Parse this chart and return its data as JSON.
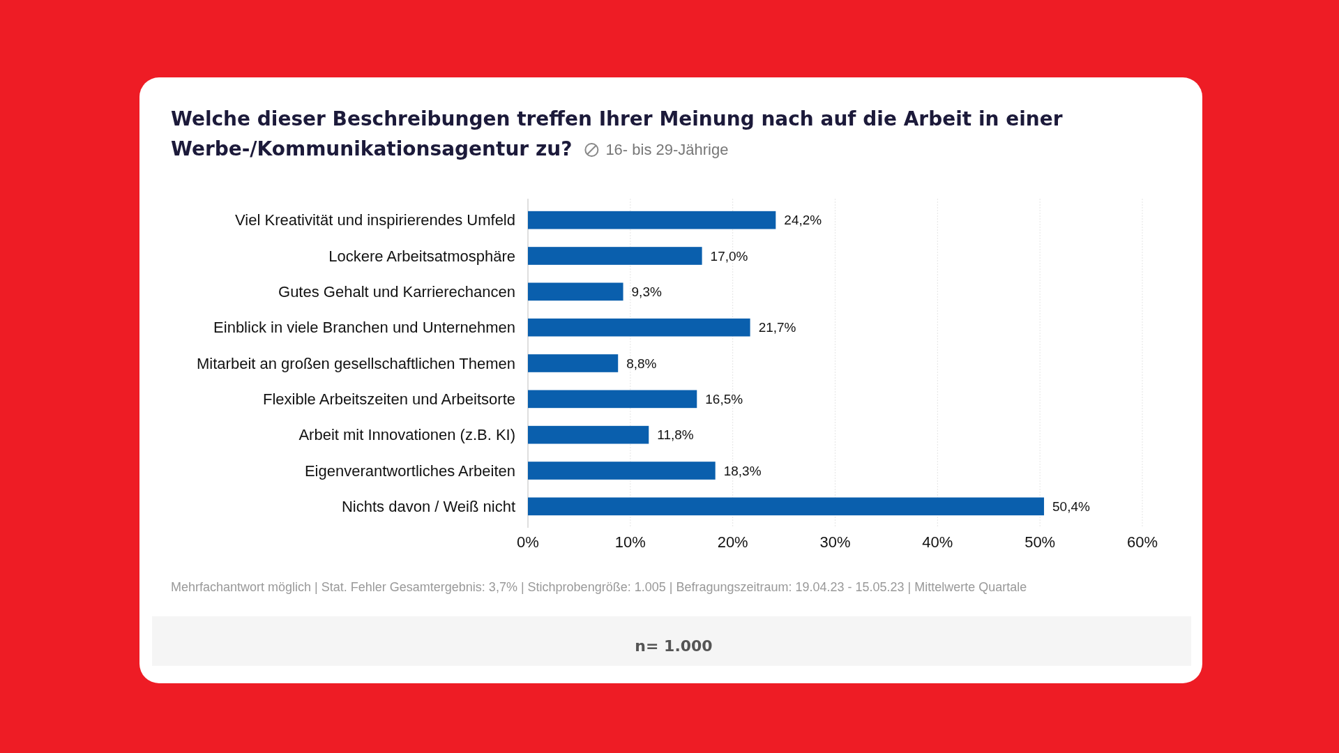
{
  "chart_data": {
    "type": "bar",
    "orientation": "horizontal",
    "title": "Welche dieser Beschreibungen treffen Ihrer Meinung nach auf die Arbeit in einer Werbe-/Kommunikationsagentur zu?",
    "subtitle": "16- bis 29-Jährige",
    "categories": [
      "Viel Kreativität und inspirierendes Umfeld",
      "Lockere Arbeitsatmosphäre",
      "Gutes Gehalt und Karrierechancen",
      "Einblick in viele Branchen und Unternehmen",
      "Mitarbeit an großen gesellschaftlichen Themen",
      "Flexible Arbeitszeiten und Arbeitsorte",
      "Arbeit mit Innovationen (z.B. KI)",
      "Eigenverantwortliches Arbeiten",
      "Nichts davon / Weiß nicht"
    ],
    "values": [
      24.2,
      17.0,
      9.3,
      21.7,
      8.8,
      16.5,
      11.8,
      18.3,
      50.4
    ],
    "value_labels": [
      "24,2%",
      "17,0%",
      "9,3%",
      "21,7%",
      "8,8%",
      "16,5%",
      "11,8%",
      "18,3%",
      "50,4%"
    ],
    "color": "#0a5fad",
    "xlim": [
      0,
      60
    ],
    "xticks": [
      {
        "value": 0,
        "label": "0%"
      },
      {
        "value": 10,
        "label": "10%"
      },
      {
        "value": 20,
        "label": "20%"
      },
      {
        "value": 30,
        "label": "30%"
      },
      {
        "value": 40,
        "label": "40%"
      },
      {
        "value": 50,
        "label": "50%"
      },
      {
        "value": 60,
        "label": "60%"
      }
    ],
    "grid": "x",
    "annotations": [
      "Mehrfachantwort möglich | Stat. Fehler Gesamtergebnis: 3,7% | Stichprobengröße: 1.005 | Befragungszeitraum: 19.04.23 - 15.05.23 | Mittelwerte Quartale",
      "n= 1.000"
    ]
  }
}
